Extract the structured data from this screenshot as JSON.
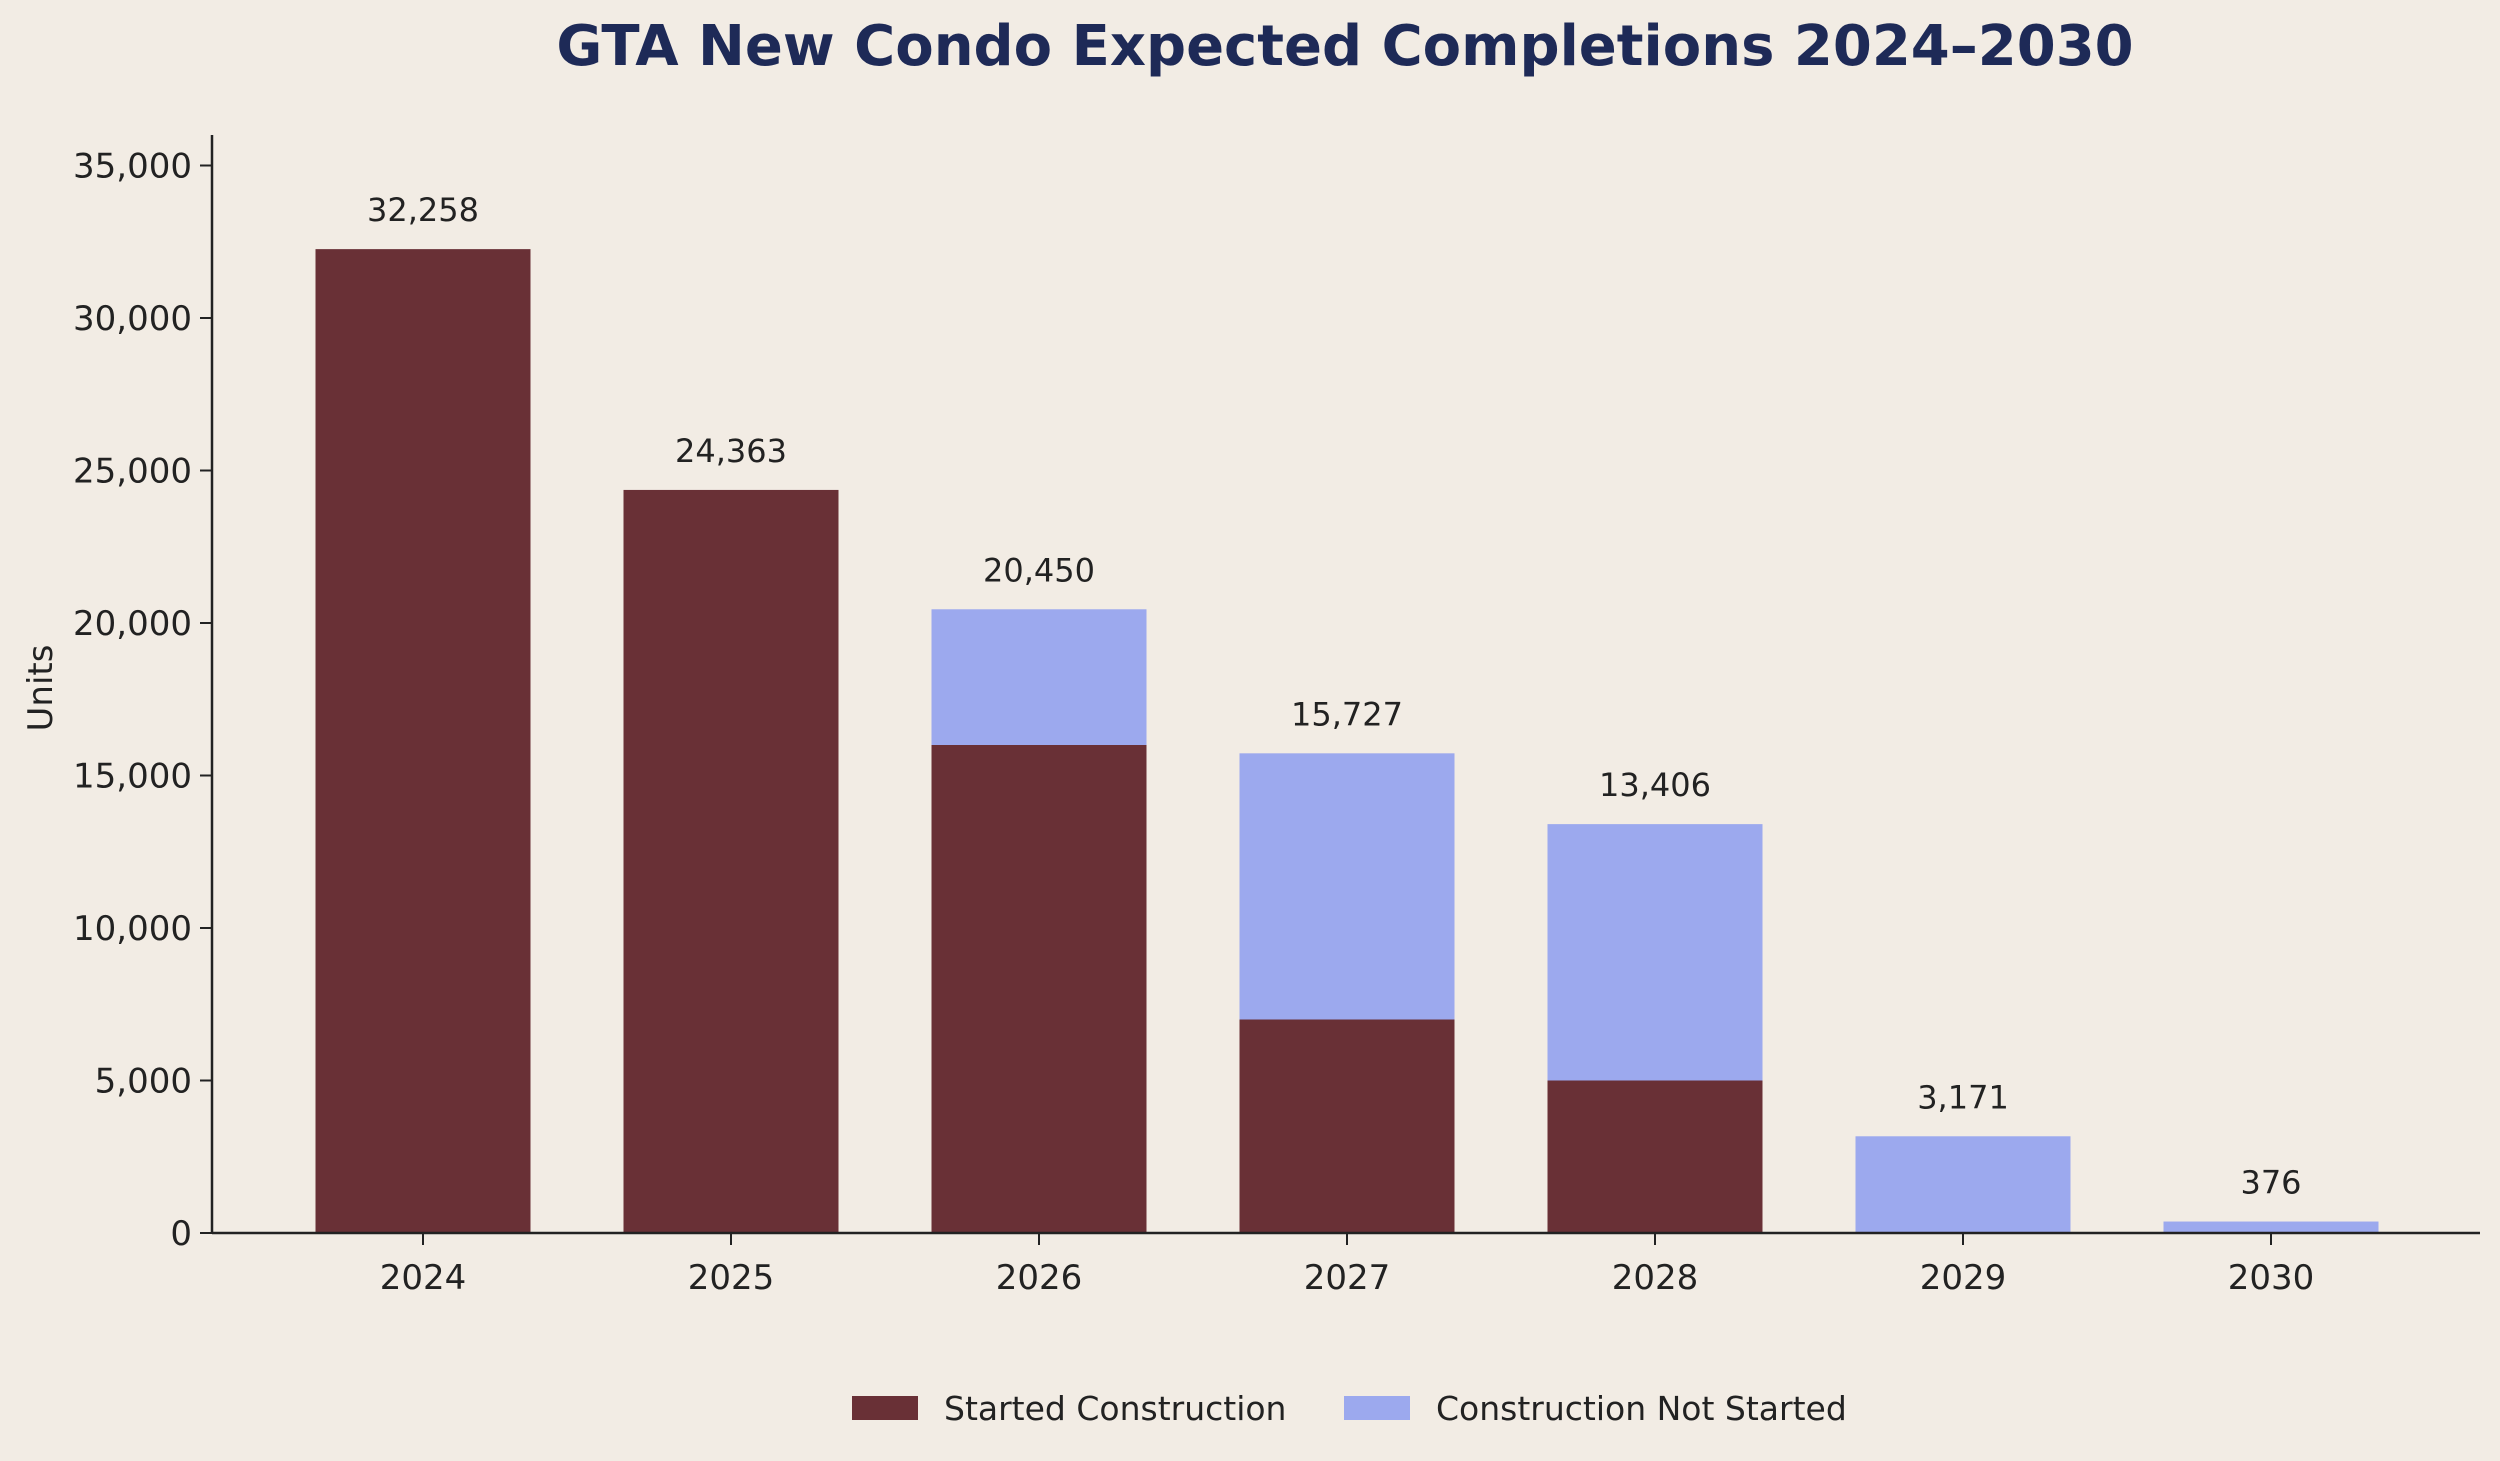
{
  "chart_data": {
    "type": "bar",
    "stacked": true,
    "title": "GTA New Condo Expected Completions 2024–2030",
    "xlabel": "",
    "ylabel": "Units",
    "categories": [
      "2024",
      "2025",
      "2026",
      "2027",
      "2028",
      "2029",
      "2030"
    ],
    "series": [
      {
        "name": "Started Construction",
        "color": "#693036",
        "values": [
          32258,
          24363,
          16000,
          7000,
          5000,
          0,
          0
        ]
      },
      {
        "name": "Construction Not Started",
        "color": "#9ca9ee",
        "values": [
          0,
          0,
          4450,
          8727,
          8406,
          3171,
          376
        ]
      }
    ],
    "totals": [
      32258,
      24363,
      20450,
      15727,
      13406,
      3171,
      376
    ],
    "total_labels": [
      "32,258",
      "24,363",
      "20,450",
      "15,727",
      "13,406",
      "3,171",
      "376"
    ],
    "ylim": [
      0,
      36000
    ],
    "yticks": [
      0,
      5000,
      10000,
      15000,
      20000,
      25000,
      30000,
      35000
    ],
    "ytick_labels": [
      "0",
      "5,000",
      "10,000",
      "15,000",
      "20,000",
      "25,000",
      "30,000",
      "35,000"
    ],
    "grid": false,
    "legend_position": "bottom-center",
    "title_color": "#1e2a57",
    "background_color": "#f2ece4",
    "axis_color": "#222222"
  }
}
